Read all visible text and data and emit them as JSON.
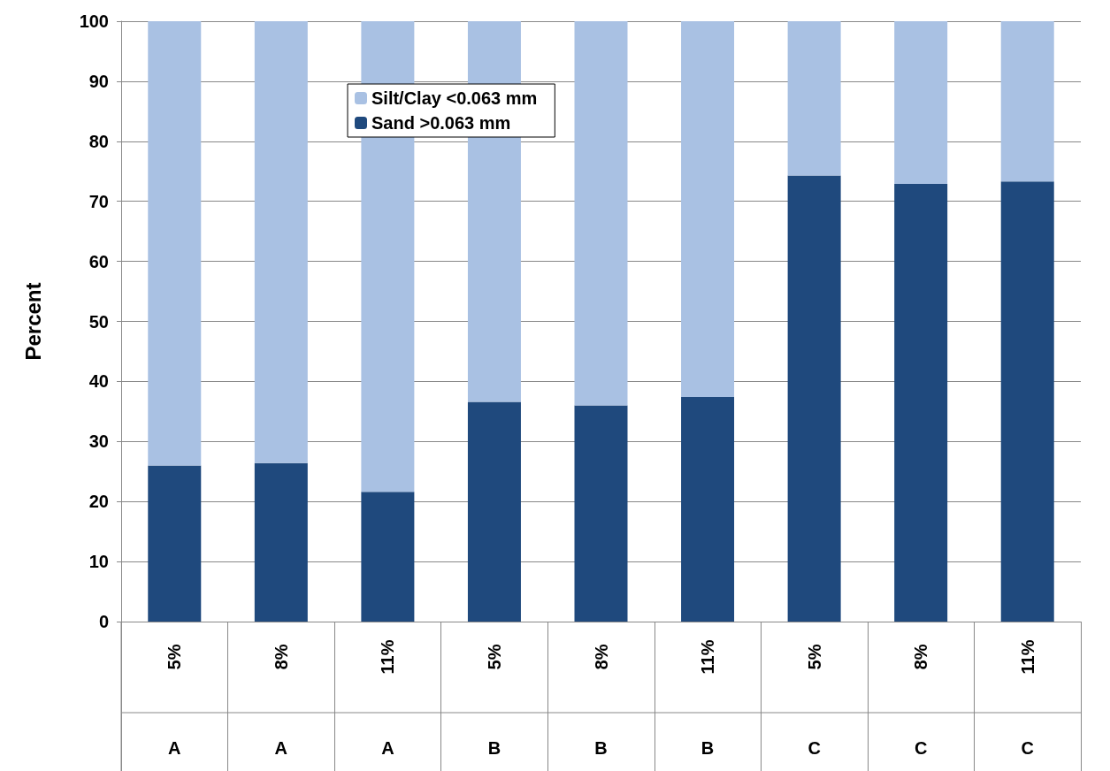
{
  "chart_data": {
    "type": "bar",
    "ylabel": "Percent",
    "stacked": true,
    "categories": [
      "5%",
      "8%",
      "11%",
      "5%",
      "8%",
      "11%",
      "5%",
      "8%",
      "11%"
    ],
    "annotations": [
      "A",
      "A",
      "A",
      "B",
      "B",
      "B",
      "C",
      "C",
      "C"
    ],
    "series": [
      {
        "name": "Sand >0.063 mm",
        "color": "#1f497d",
        "values": [
          26,
          26.4,
          21.6,
          36.6,
          36,
          37.4,
          74.3,
          72.9,
          73.3
        ]
      },
      {
        "name": "Silt/Clay <0.063 mm",
        "color": "#a9c1e3",
        "values": [
          74,
          73.6,
          78.4,
          63.4,
          64,
          62.6,
          25.7,
          27.1,
          26.7
        ]
      }
    ],
    "ylim": [
      0,
      100
    ],
    "yticks": [
      0,
      10,
      20,
      30,
      40,
      50,
      60,
      70,
      80,
      90,
      100
    ],
    "grid": "y",
    "legend": "top"
  }
}
